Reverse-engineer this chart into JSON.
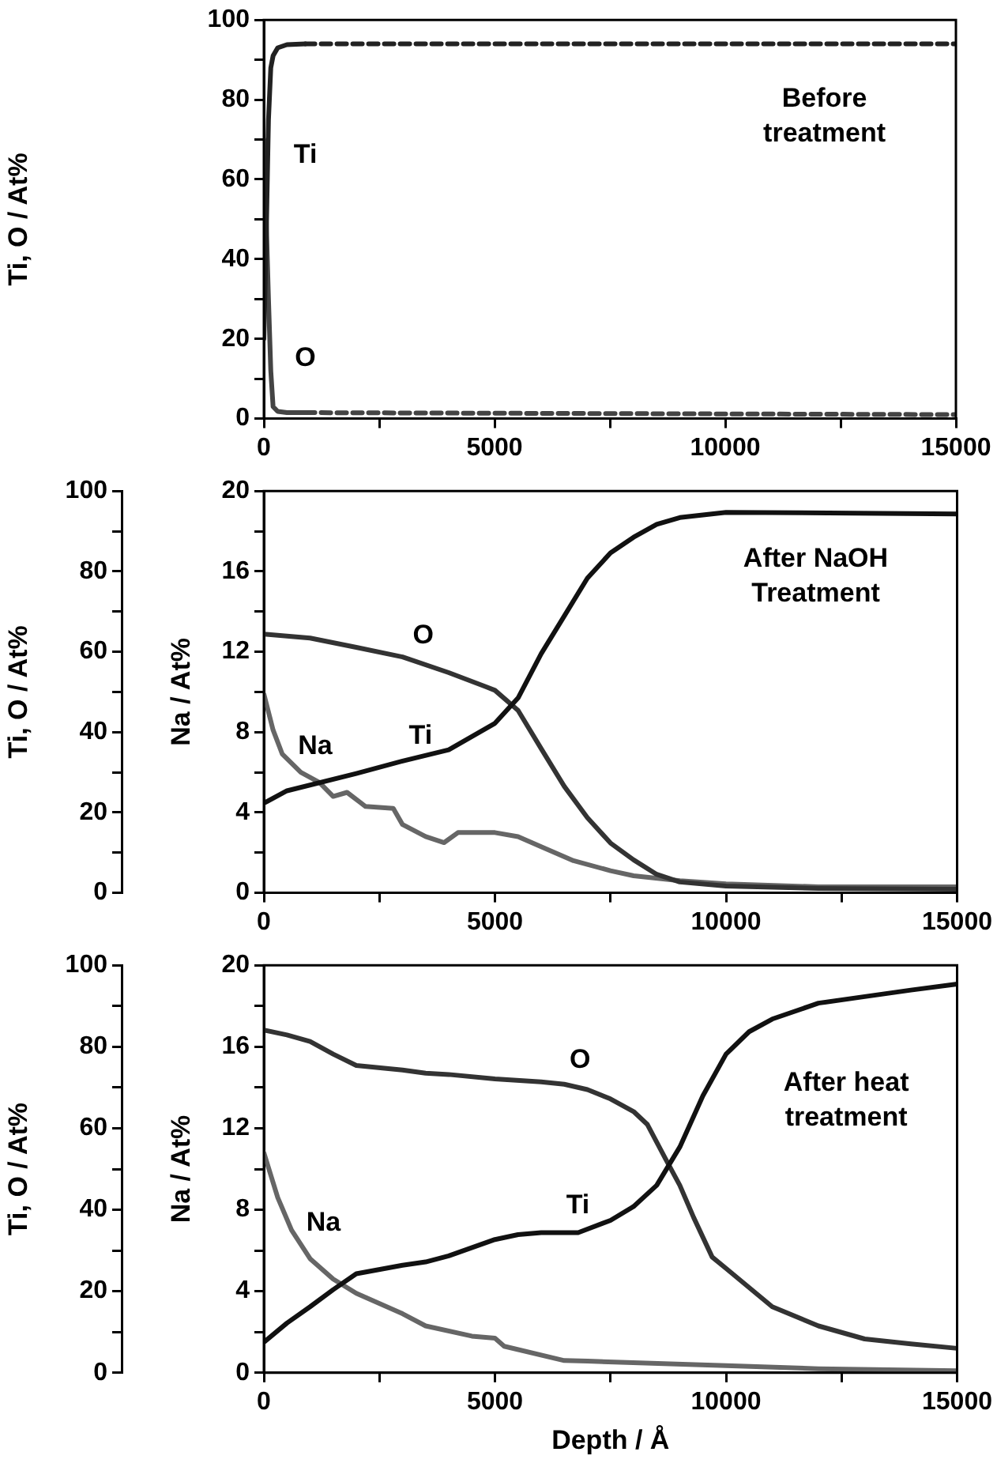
{
  "chart_data": [
    {
      "type": "line",
      "ylabel": "Ti, O / At%",
      "annotations": [
        "Before treatment"
      ],
      "xlim": [
        0,
        15000
      ],
      "xticks": [
        0,
        {
          "value": 2500,
          "label": null
        },
        5000,
        {
          "value": 7500,
          "label": null
        },
        10000,
        {
          "value": 12500,
          "label": null
        },
        15000
      ],
      "ylim": [
        0,
        100
      ],
      "yticks": [
        0,
        {
          "value": 10,
          "label": null
        },
        20,
        {
          "value": 30,
          "label": null
        },
        40,
        {
          "value": 50,
          "label": null
        },
        60,
        {
          "value": 70,
          "label": null
        },
        80,
        {
          "value": 90,
          "label": null
        },
        100
      ],
      "series": [
        {
          "name": "Ti",
          "color": "#222222",
          "x": [
            0,
            50,
            100,
            150,
            200,
            300,
            500,
            900
          ],
          "values": [
            20,
            45,
            75,
            88,
            91,
            93,
            93.8,
            94
          ]
        },
        {
          "name": "O",
          "color": "#444444",
          "x": [
            0,
            50,
            100,
            150,
            200,
            300,
            500,
            900
          ],
          "values": [
            70,
            50,
            30,
            12,
            3,
            1.8,
            1.5,
            1.5
          ]
        },
        {
          "color": "#222222",
          "line_style": "dashed",
          "x": [
            900,
            15000
          ],
          "values": [
            94,
            94
          ]
        },
        {
          "color": "#444444",
          "line_style": "dashed",
          "x": [
            900,
            15000
          ],
          "values": [
            1.5,
            1
          ]
        }
      ]
    },
    {
      "type": "line",
      "ylabel": "Ti, O / At%",
      "y2label": "Na / At%",
      "annotations": [
        "After NaOH Treatment"
      ],
      "xlim": [
        0,
        15000
      ],
      "xticks": [
        0,
        {
          "value": 2500,
          "label": null
        },
        5000,
        {
          "value": 7500,
          "label": null
        },
        10000,
        {
          "value": 12500,
          "label": null
        },
        15000
      ],
      "ylim": [
        0,
        100
      ],
      "yticks": [
        0,
        {
          "value": 10,
          "label": null
        },
        20,
        {
          "value": 30,
          "label": null
        },
        40,
        {
          "value": 50,
          "label": null
        },
        60,
        {
          "value": 70,
          "label": null
        },
        80,
        {
          "value": 90,
          "label": null
        },
        100
      ],
      "y2lim": [
        0,
        20
      ],
      "y2ticks": [
        0,
        {
          "value": 2,
          "label": null
        },
        4,
        {
          "value": 6,
          "label": null
        },
        8,
        {
          "value": 10,
          "label": null
        },
        12,
        {
          "value": 14,
          "label": null
        },
        16,
        {
          "value": 18,
          "label": null
        },
        20
      ],
      "series": [
        {
          "name": "Ti",
          "color": "#111111",
          "x": [
            0,
            500,
            2000,
            3000,
            4000,
            5000,
            5500,
            6000,
            6500,
            7000,
            7500,
            8000,
            8500,
            9000,
            10000,
            15000
          ],
          "values": [
            22.3,
            25.4,
            29.7,
            32.8,
            35.6,
            42.2,
            48.5,
            59.5,
            68.9,
            78.3,
            84.6,
            88.5,
            91.7,
            93.4,
            94.7,
            94.3
          ]
        },
        {
          "name": "O",
          "color": "#333333",
          "x": [
            0,
            1000,
            2000,
            3000,
            4000,
            4800,
            5000,
            5500,
            6000,
            6500,
            7000,
            7500,
            8000,
            8500,
            9000,
            10000,
            12000,
            15000
          ],
          "values": [
            64.4,
            63.4,
            61.1,
            58.7,
            54.8,
            51.3,
            50.4,
            45.4,
            35.9,
            26.5,
            18.7,
            12.4,
            8.2,
            4.6,
            2.7,
            1.7,
            1.1,
            0.9
          ]
        },
        {
          "name": "Na",
          "color": "#666666",
          "axis": "y2",
          "x": [
            0,
            200,
            400,
            800,
            1200,
            1500,
            1800,
            2200,
            2800,
            3000,
            3500,
            3900,
            4200,
            5000,
            5500,
            6000,
            6700,
            7500,
            8000,
            9000,
            10000,
            12000,
            15000
          ],
          "values": [
            9.9,
            8.1,
            6.9,
            6.0,
            5.5,
            4.8,
            5.0,
            4.3,
            4.2,
            3.4,
            2.8,
            2.5,
            3.0,
            3.0,
            2.8,
            2.3,
            1.6,
            1.1,
            0.85,
            0.6,
            0.45,
            0.3,
            0.3
          ]
        }
      ]
    },
    {
      "type": "line",
      "xlabel": "Depth / Å",
      "ylabel": "Ti, O / At%",
      "y2label": "Na / At%",
      "annotations": [
        "After heat treatment"
      ],
      "xlim": [
        0,
        15000
      ],
      "xticks": [
        0,
        {
          "value": 2500,
          "label": null
        },
        5000,
        {
          "value": 7500,
          "label": null
        },
        10000,
        {
          "value": 12500,
          "label": null
        },
        15000
      ],
      "ylim": [
        0,
        100
      ],
      "yticks": [
        0,
        {
          "value": 10,
          "label": null
        },
        20,
        {
          "value": 30,
          "label": null
        },
        40,
        {
          "value": 50,
          "label": null
        },
        60,
        {
          "value": 70,
          "label": null
        },
        80,
        {
          "value": 90,
          "label": null
        },
        100
      ],
      "y2lim": [
        0,
        20
      ],
      "y2ticks": [
        0,
        {
          "value": 2,
          "label": null
        },
        4,
        {
          "value": 6,
          "label": null
        },
        8,
        {
          "value": 10,
          "label": null
        },
        12,
        {
          "value": 14,
          "label": null
        },
        16,
        {
          "value": 18,
          "label": null
        },
        20
      ],
      "series": [
        {
          "name": "Ti",
          "color": "#111111",
          "x": [
            0,
            500,
            1000,
            1500,
            2000,
            3000,
            3500,
            4000,
            5000,
            5500,
            6000,
            6800,
            7500,
            8000,
            8500,
            9000,
            9500,
            10000,
            10500,
            11000,
            12000,
            13000,
            14000,
            15000
          ],
          "values": [
            7.5,
            12.2,
            16.2,
            20.4,
            24.3,
            26.4,
            27.2,
            28.7,
            32.7,
            33.9,
            34.4,
            34.4,
            37.4,
            40.8,
            46.0,
            55.4,
            68.0,
            78.2,
            83.7,
            86.8,
            90.7,
            92.3,
            93.9,
            95.4
          ]
        },
        {
          "name": "O",
          "color": "#333333",
          "x": [
            0,
            500,
            1000,
            1500,
            2000,
            3000,
            3500,
            4000,
            5000,
            6000,
            6500,
            7000,
            7500,
            8000,
            8300,
            8700,
            9000,
            9300,
            9700,
            10000,
            11000,
            12000,
            13000,
            14000,
            15000
          ],
          "values": [
            84.1,
            82.9,
            81.3,
            78.2,
            75.4,
            74.3,
            73.5,
            73.2,
            72.1,
            71.4,
            70.8,
            69.5,
            67.2,
            64.1,
            60.9,
            52.3,
            46.0,
            38.1,
            28.4,
            25.6,
            16.2,
            11.5,
            8.3,
            7.1,
            6.0
          ]
        },
        {
          "name": "Na",
          "color": "#666666",
          "axis": "y2",
          "x": [
            0,
            300,
            600,
            1000,
            1500,
            2000,
            3000,
            3500,
            4500,
            5000,
            5200,
            6500,
            7000,
            10000,
            12000,
            15000
          ],
          "values": [
            10.8,
            8.6,
            7.0,
            5.6,
            4.6,
            3.9,
            2.9,
            2.3,
            1.8,
            1.7,
            1.3,
            0.6,
            0.57,
            0.35,
            0.2,
            0.1
          ]
        }
      ]
    }
  ]
}
